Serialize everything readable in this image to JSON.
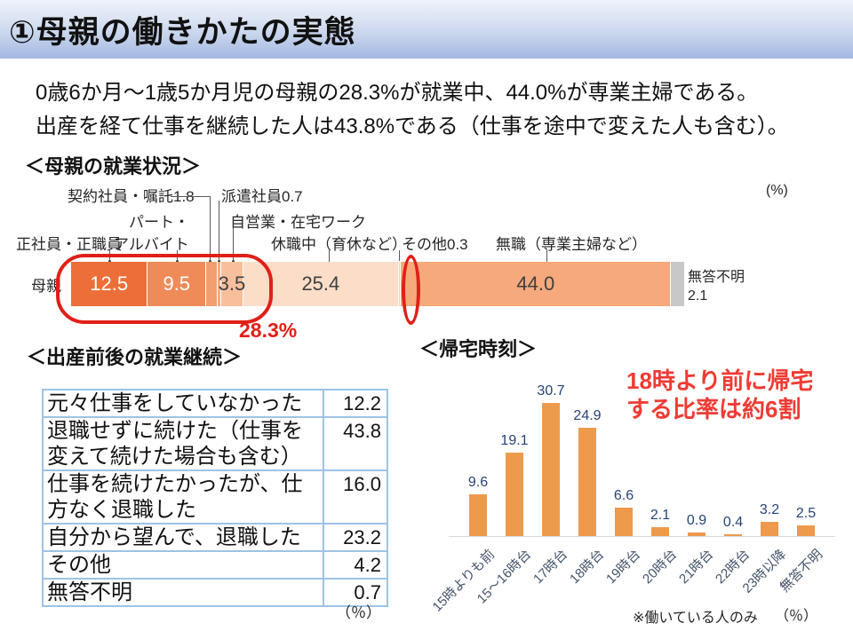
{
  "slide": {
    "title": "①母親の働きかたの実態",
    "intro_line1": "0歳6か月～1歳5か月児の母親の28.3%が就業中、44.0%が専業主婦である。",
    "intro_line2": "出産を経て仕事を継続した人は43.8%である（仕事を途中で変えた人も含む）。"
  },
  "chart_data": [
    {
      "id": "employment-status",
      "type": "bar",
      "subtype": "stacked-horizontal",
      "title": "＜母親の就業状況＞",
      "unit": "(%)",
      "row_label": "母親",
      "annotation": "28.3%",
      "xlim": [
        0,
        100
      ],
      "segments": [
        {
          "key": "seishain",
          "label": "正社員・正職員",
          "value": 12.5,
          "color": "#ec6f3a",
          "show_value": true,
          "value_color": "#ffffff"
        },
        {
          "key": "part",
          "label": "パート・アルバイト",
          "value": 9.5,
          "color": "#ef8b59",
          "show_value": true,
          "value_color": "#ffffff"
        },
        {
          "key": "keiyaku",
          "label": "契約社員・嘱託",
          "value": 1.8,
          "color": "#f19e70",
          "show_value": false,
          "value_color": "#404040"
        },
        {
          "key": "haken",
          "label": "派遣社員",
          "value": 0.7,
          "color": "#f4ac80",
          "show_value": false,
          "value_color": "#404040"
        },
        {
          "key": "jiei",
          "label": "自営業・在宅ワーク",
          "value": 3.5,
          "color": "#f7bf9c",
          "show_value": true,
          "value_color": "#404040"
        },
        {
          "key": "kyushoku",
          "label": "休職中（育休など）",
          "value": 25.4,
          "color": "#fbddc8",
          "show_value": true,
          "value_color": "#404040"
        },
        {
          "key": "sonota",
          "label": "その他",
          "value": 0.3,
          "color": "#facfb4",
          "show_value": false,
          "value_color": "#404040"
        },
        {
          "key": "mushoku",
          "label": "無職（専業主婦など）",
          "value": 44.0,
          "color": "#f5a97d",
          "show_value": true,
          "value_color": "#404040"
        },
        {
          "key": "mutou",
          "label": "無答不明",
          "value": 2.1,
          "color": "#c8c8c8",
          "show_value": false,
          "value_color": "#404040"
        }
      ],
      "callouts": {
        "keiyaku": "契約社員・嘱託1.8",
        "haken": "派遣社員0.7",
        "part1": "パート・",
        "part2": "アルバイト",
        "seishain": "正社員・正職員",
        "jiei": "自営業・在宅ワーク",
        "kyushoku": "休職中（育休など）",
        "sonota": "その他0.3",
        "mushoku": "無職（専業主婦など）",
        "mutou_line1": "無答不明",
        "mutou_line2": "2.1"
      }
    },
    {
      "id": "continuation",
      "type": "table",
      "title": "＜出産前後の就業継続＞",
      "unit": "（％）",
      "rows": [
        {
          "label": "元々仕事をしていなかった",
          "value": "12.2"
        },
        {
          "label": "退職せずに続けた（仕事を変えて続けた場合も含む）",
          "value": "43.8"
        },
        {
          "label": "仕事を続けたかったが、仕方なく退職した",
          "value": "16.0"
        },
        {
          "label": "自分から望んで、退職した",
          "value": "23.2"
        },
        {
          "label": "その他",
          "value": "4.2"
        },
        {
          "label": "無答不明",
          "value": "0.7"
        }
      ]
    },
    {
      "id": "kitaku-jikoku",
      "type": "bar",
      "title": "＜帰宅時刻＞",
      "categories": [
        "15時よりも前",
        "15～16時台",
        "17時台",
        "18時台",
        "19時台",
        "20時台",
        "21時台",
        "22時台",
        "23時以降",
        "無答不明"
      ],
      "values": [
        9.6,
        19.1,
        30.7,
        24.9,
        6.6,
        2.1,
        0.9,
        0.4,
        3.2,
        2.5
      ],
      "ylim": [
        0,
        33
      ],
      "grid": false,
      "legend": "none",
      "bar_color": "#ee9a4d",
      "value_color": "#264478",
      "category_color": "#44546A",
      "annotation_line1": "18時より前に帰宅",
      "annotation_line2": "する比率は約6割",
      "annotation_color": "#ee3b33",
      "footnote": "※働いている人のみ",
      "unit": "（％）"
    }
  ],
  "colors": {
    "header_top": "#eef3fa",
    "header_bottom": "#a2b7de",
    "highlight_red": "#e02018",
    "table_border": "#9dc3e6"
  }
}
